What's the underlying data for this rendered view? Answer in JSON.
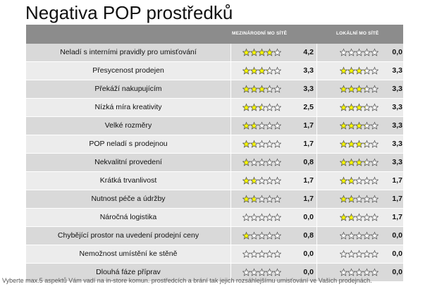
{
  "title": "Negativa POP prostředků",
  "footer": "Vyberte max.5 aspektů Vám vadí na in-store komun. prostředcích a brání tak jejich rozsáhlejšímu umisťování ve Vašich prodejnách.",
  "colors": {
    "header_bg": "#8c8c8c",
    "star_fill": "#ffff00",
    "star_empty": "#ffffff",
    "star_stroke": "#555555"
  },
  "chart_data": {
    "type": "table",
    "columns": [
      "MEZINÁRODNÍ MO SÍTĚ",
      "LOKÁLNÍ MO SÍTĚ"
    ],
    "scale_max": 5,
    "rows": [
      {
        "label": "Neladí s interními pravidly pro umisťování",
        "international": 4.2,
        "international_label": "4,2",
        "local": 0.0,
        "local_label": "0,0"
      },
      {
        "label": "Přesycenost prodejen",
        "international": 3.3,
        "international_label": "3,3",
        "local": 3.3,
        "local_label": "3,3"
      },
      {
        "label": "Překáží nakupujícím",
        "international": 3.3,
        "international_label": "3,3",
        "local": 3.3,
        "local_label": "3,3"
      },
      {
        "label": "Nízká míra kreativity",
        "international": 2.5,
        "international_label": "2,5",
        "local": 3.3,
        "local_label": "3,3"
      },
      {
        "label": "Velké rozměry",
        "international": 1.7,
        "international_label": "1,7",
        "local": 3.3,
        "local_label": "3,3"
      },
      {
        "label": "POP neladí s prodejnou",
        "international": 1.7,
        "international_label": "1,7",
        "local": 3.3,
        "local_label": "3,3"
      },
      {
        "label": "Nekvalitní provedení",
        "international": 0.8,
        "international_label": "0,8",
        "local": 3.3,
        "local_label": "3,3"
      },
      {
        "label": "Krátká trvanlivost",
        "international": 1.7,
        "international_label": "1,7",
        "local": 1.7,
        "local_label": "1,7"
      },
      {
        "label": "Nutnost péče a údržby",
        "international": 1.7,
        "international_label": "1,7",
        "local": 1.7,
        "local_label": "1,7"
      },
      {
        "label": "Náročná logistika",
        "international": 0.0,
        "international_label": "0,0",
        "local": 1.7,
        "local_label": "1,7"
      },
      {
        "label": "Chybějící prostor na uvedení prodejní ceny",
        "international": 0.8,
        "international_label": "0,8",
        "local": 0.0,
        "local_label": "0,0"
      },
      {
        "label": "Nemožnost umístění ke stěně",
        "international": 0.0,
        "international_label": "0,0",
        "local": 0.0,
        "local_label": "0,0"
      },
      {
        "label": "Dlouhá fáze příprav",
        "international": 0.0,
        "international_label": "0,0",
        "local": 0.0,
        "local_label": "0,0"
      }
    ]
  }
}
